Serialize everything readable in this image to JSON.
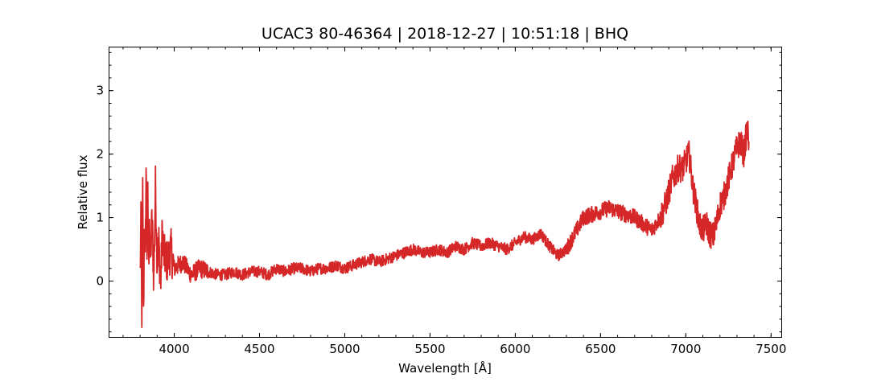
{
  "chart_data": {
    "type": "line",
    "title": "UCAC3 80-46364 | 2018-12-27 | 10:51:18 | BHQ",
    "xlabel": "Wavelength [Å]",
    "ylabel": "Relative flux",
    "xlim": [
      3620,
      7560
    ],
    "ylim": [
      -0.88,
      3.68
    ],
    "x_ticks": [
      4000,
      4500,
      5000,
      5500,
      6000,
      6500,
      7000,
      7500
    ],
    "x_minor_step": 100,
    "y_ticks": [
      0,
      1,
      2,
      3
    ],
    "y_minor_step": 0.2,
    "grid": false,
    "line_color": "#d62728",
    "series": [
      {
        "x": [
          3800,
          3805,
          3810,
          3815,
          3820,
          3825,
          3830,
          3835,
          3840,
          3845,
          3850,
          3855,
          3860,
          3870,
          3880,
          3890,
          3900,
          3910,
          3920,
          3930,
          3940,
          3960,
          3980,
          4000,
          4050,
          4100,
          4150,
          4200,
          4250,
          4300,
          4350,
          4400,
          4450,
          4500,
          4550,
          4600,
          4650,
          4700,
          4750,
          4800,
          4850,
          4900,
          4950,
          5000,
          5050,
          5100,
          5150,
          5200,
          5250,
          5300,
          5350,
          5400,
          5450,
          5500,
          5550,
          5600,
          5650,
          5700,
          5750,
          5800,
          5850,
          5900,
          5950,
          6000,
          6050,
          6100,
          6150,
          6200,
          6250,
          6300,
          6350,
          6400,
          6450,
          6500,
          6550,
          6600,
          6650,
          6700,
          6750,
          6800,
          6850,
          6880,
          6900,
          6920,
          6940,
          6960,
          6980,
          7000,
          7020,
          7040,
          7060,
          7080,
          7100,
          7120,
          7140,
          7160,
          7180,
          7200,
          7220,
          7240,
          7260,
          7280,
          7300,
          7320,
          7340,
          7360,
          7370
        ],
        "y": [
          0.1,
          0.9,
          -0.5,
          1.4,
          -0.6,
          1.0,
          0.2,
          1.8,
          0.5,
          1.3,
          0.2,
          1.1,
          0.3,
          1.0,
          0.0,
          1.5,
          0.3,
          0.6,
          -0.1,
          0.8,
          0.4,
          0.3,
          0.5,
          0.2,
          0.3,
          0.1,
          0.2,
          0.15,
          0.1,
          0.1,
          0.15,
          0.1,
          0.15,
          0.15,
          0.1,
          0.2,
          0.15,
          0.2,
          0.2,
          0.15,
          0.2,
          0.2,
          0.25,
          0.2,
          0.25,
          0.3,
          0.35,
          0.3,
          0.35,
          0.4,
          0.45,
          0.5,
          0.45,
          0.45,
          0.5,
          0.45,
          0.55,
          0.5,
          0.6,
          0.55,
          0.6,
          0.55,
          0.5,
          0.6,
          0.7,
          0.65,
          0.75,
          0.55,
          0.4,
          0.5,
          0.75,
          1.0,
          1.05,
          1.1,
          1.15,
          1.1,
          1.05,
          1.0,
          0.9,
          0.8,
          1.0,
          1.2,
          1.4,
          1.6,
          1.7,
          1.8,
          1.75,
          1.9,
          2.0,
          1.5,
          1.2,
          0.9,
          0.8,
          0.9,
          0.75,
          0.7,
          0.9,
          1.2,
          1.3,
          1.5,
          1.7,
          1.9,
          2.1,
          2.2,
          2.0,
          2.4,
          2.2
        ]
      }
    ]
  }
}
